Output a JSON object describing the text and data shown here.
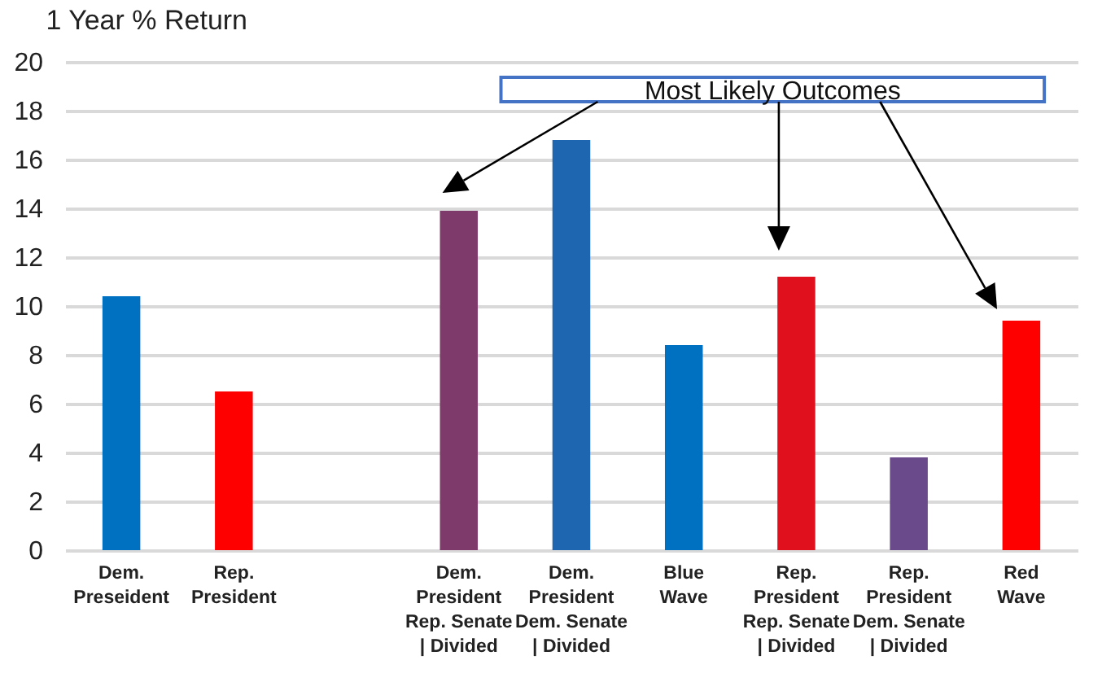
{
  "chart_data": {
    "type": "bar",
    "title": "1 Year % Return",
    "categories": [
      "Dem.\nPreseident",
      "Rep.\nPresident",
      null,
      "Dem.\nPresident\nRep. Senate\n| Divided",
      "Dem.\nPresident\nDem. Senate\n| Divided",
      "Blue\nWave",
      "Rep.\nPresident\nRep. Senate\n| Divided",
      "Rep.\nPresident\nDem. Senate\n| Divided",
      "Red\nWave"
    ],
    "values": [
      10.4,
      6.5,
      null,
      13.9,
      16.8,
      8.4,
      11.2,
      3.8,
      9.4
    ],
    "colors": [
      "#0070c0",
      "#ff0000",
      "#ff0000",
      "#7e3a6a",
      "#1f66b0",
      "#0070c0",
      "#e0101c",
      "#6a4a8a",
      "#ff0000"
    ],
    "ylim": [
      0,
      20
    ],
    "yticks": [
      0,
      2,
      4,
      6,
      8,
      10,
      12,
      14,
      16,
      18,
      20
    ],
    "grid": "y",
    "annotations": [
      "Most Likely Outcomes"
    ]
  }
}
